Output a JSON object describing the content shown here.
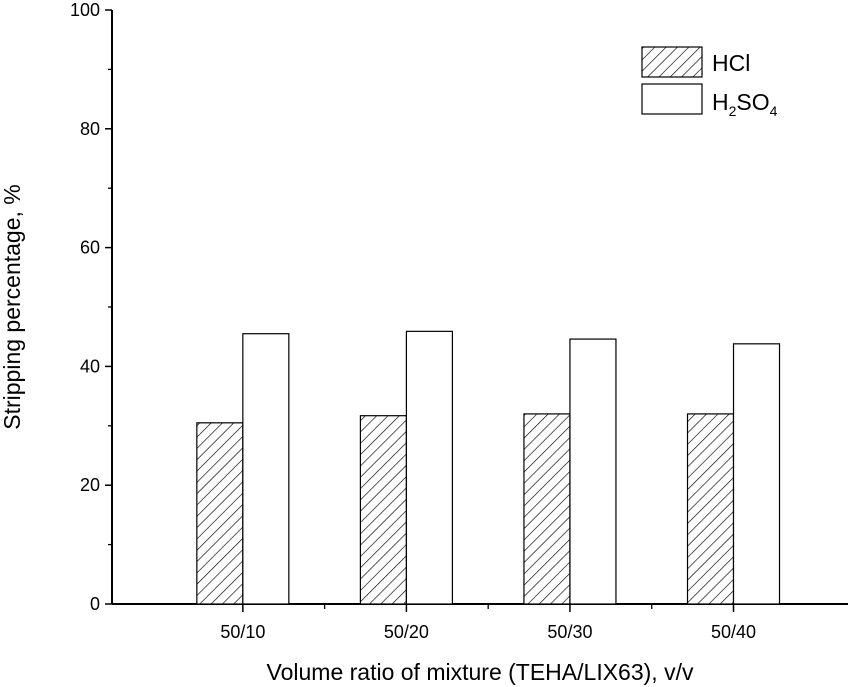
{
  "chart_data": {
    "type": "bar",
    "categories": [
      "50/10",
      "50/20",
      "50/30",
      "50/40"
    ],
    "series": [
      {
        "name": "HCl",
        "values": [
          30.5,
          31.7,
          32.0,
          32.0
        ],
        "style": "hatched"
      },
      {
        "name": "H2SO4",
        "values": [
          45.5,
          45.9,
          44.6,
          43.8
        ],
        "style": "open"
      }
    ],
    "xlabel": "Volume ratio of  mixture (TEHA/LIX63), v/v",
    "ylabel": "Stripping percentage, %",
    "ylim": [
      0,
      100
    ],
    "yticks": [
      0,
      20,
      40,
      60,
      80,
      100
    ],
    "legend": {
      "position": "top-right",
      "hcl_label": "HCl",
      "h2so4_parts": {
        "h": "H",
        "sub1": "2",
        "so": "SO",
        "sub2": "4"
      }
    },
    "grid": false,
    "colors": {
      "bar_edge": "#000000",
      "open_fill": "#ffffff",
      "hatch": "#000000"
    }
  }
}
